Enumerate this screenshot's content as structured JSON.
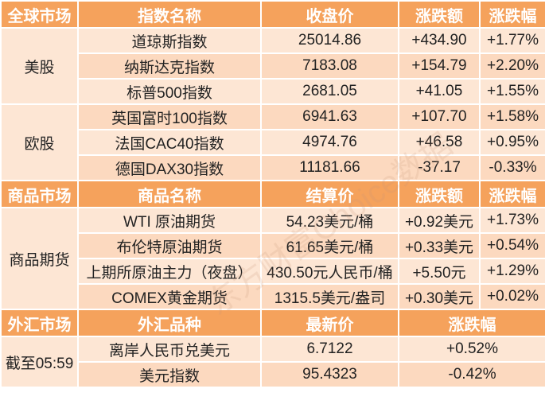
{
  "sections": [
    {
      "header": [
        "全球市场",
        "指数名称",
        "收盘价",
        "涨跌额",
        "涨跌幅"
      ],
      "groups": [
        {
          "label": "美股",
          "rows": [
            [
              "道琼斯指数",
              "25014.86",
              "+434.90",
              "+1.77%"
            ],
            [
              "纳斯达克指数",
              "7183.08",
              "+154.79",
              "+2.20%"
            ],
            [
              "标普500指数",
              "2681.05",
              "+41.05",
              "+1.55%"
            ]
          ]
        },
        {
          "label": "欧股",
          "rows": [
            [
              "英国富时100指数",
              "6941.63",
              "+107.70",
              "+1.58%"
            ],
            [
              "法国CAC40指数",
              "4974.76",
              "+46.58",
              "+0.95%"
            ],
            [
              "德国DAX30指数",
              "11181.66",
              "-37.17",
              "-0.33%"
            ]
          ]
        }
      ]
    },
    {
      "header": [
        "商品市场",
        "商品名称",
        "结算价",
        "涨跌额",
        "涨跌幅"
      ],
      "groups": [
        {
          "label": "商品期货",
          "rows": [
            [
              "WTI 原油期货",
              "54.23美元/桶",
              "+0.92美元",
              "+1.73%"
            ],
            [
              "布伦特原油期货",
              "61.65美元/桶",
              "+0.33美元",
              "+0.54%"
            ],
            [
              "上期所原油主力（夜盘）",
              "430.50元人民币/桶",
              "+5.50元",
              "+1.29%"
            ],
            [
              "COMEX黄金期货",
              "1315.5美元/盎司",
              "+0.30美元",
              "+0.02%"
            ]
          ]
        }
      ]
    },
    {
      "header": [
        "外汇市场",
        "外汇品种",
        "最新价",
        "涨跌幅"
      ],
      "groups": [
        {
          "label": "截至05:59",
          "rows": [
            [
              "离岸人民币兑美元",
              "6.7122",
              "+0.52%"
            ],
            [
              "美元指数",
              "95.4323",
              "-0.42%"
            ]
          ]
        }
      ]
    }
  ],
  "watermark": "东方财富Choice数据"
}
